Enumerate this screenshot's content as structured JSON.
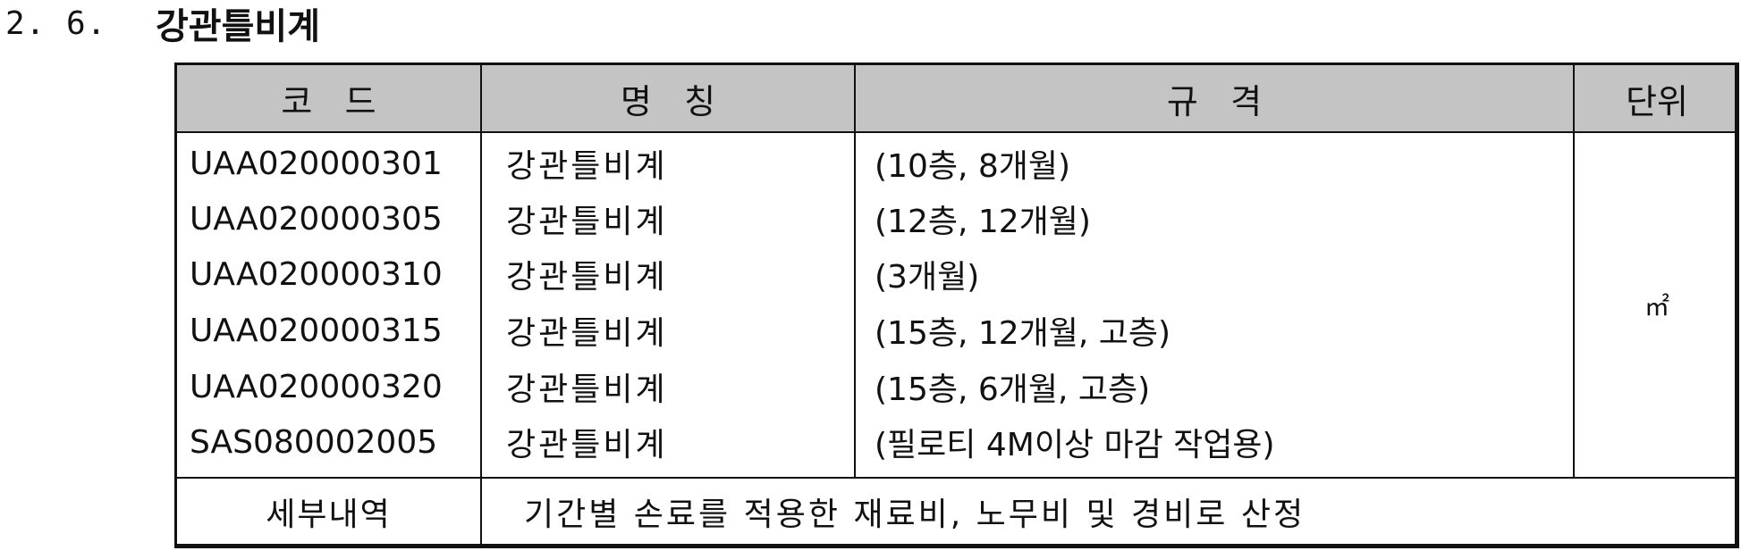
{
  "section": {
    "number": "2. 6.",
    "title": "강관틀비계"
  },
  "table": {
    "headers": {
      "code": "코   드",
      "name": "명   칭",
      "spec": "규   격",
      "unit": "단위"
    },
    "rows": [
      {
        "code": "UAA020000301",
        "name": "강관틀비계",
        "spec": "(10층, 8개월)"
      },
      {
        "code": "UAA020000305",
        "name": "강관틀비계",
        "spec": "(12층, 12개월)"
      },
      {
        "code": "UAA020000310",
        "name": "강관틀비계",
        "spec": "(3개월)"
      },
      {
        "code": "UAA020000315",
        "name": "강관틀비계",
        "spec": "(15층, 12개월, 고층)"
      },
      {
        "code": "UAA020000320",
        "name": "강관틀비계",
        "spec": "(15층, 6개월, 고층)"
      },
      {
        "code": "SAS080002005",
        "name": "강관틀비계",
        "spec": "(필로티 4M이상 마감 작업용)"
      }
    ],
    "unit_value": "㎡",
    "footer": {
      "label": "세부내역",
      "text": "기간별 손료를 적용한 재료비, 노무비 및 경비로 산정"
    }
  }
}
